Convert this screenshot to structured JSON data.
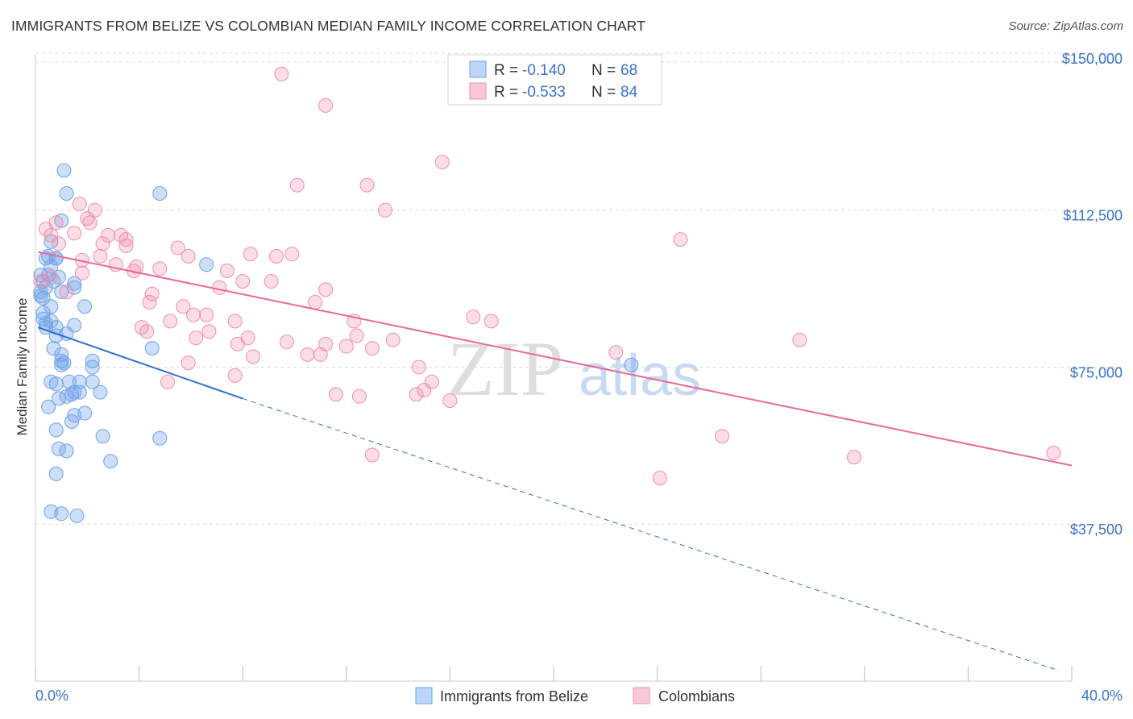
{
  "header": {
    "title": "IMMIGRANTS FROM BELIZE VS COLOMBIAN MEDIAN FAMILY INCOME CORRELATION CHART",
    "source": "Source: ZipAtlas.com"
  },
  "watermark": {
    "zip": "ZIP",
    "atlas": "atlas"
  },
  "legend": {
    "r_label": "R =",
    "n_label": "N =",
    "rows": [
      {
        "r": "-0.140",
        "n": "68",
        "color": "#6fa3e8"
      },
      {
        "r": "-0.533",
        "n": "84",
        "color": "#f08fb0"
      }
    ]
  },
  "colors": {
    "blue": "#6fa3e8",
    "blue_line": "#2f6fd0",
    "pink": "#f08fb0",
    "pink_line": "#e8699a",
    "tick_text": "#3a73c9"
  },
  "chart_data": {
    "type": "scatter",
    "title": "IMMIGRANTS FROM BELIZE VS COLOMBIAN MEDIAN FAMILY INCOME CORRELATION CHART",
    "xlabel": "",
    "ylabel": "Median Family Income",
    "xlim": [
      0,
      40
    ],
    "ylim": [
      0,
      155000
    ],
    "x_tick_labels": [
      "0.0%",
      "40.0%"
    ],
    "y_ticks": [
      37500,
      75000,
      112500,
      150000
    ],
    "y_tick_labels": [
      "$37,500",
      "$75,000",
      "$112,500",
      "$150,000"
    ],
    "grid": true,
    "legend_position": "top-center",
    "series": [
      {
        "name": "Immigrants from Belize",
        "r": -0.14,
        "n": 68,
        "color": "#6fa3e8",
        "trend": {
          "x": [
            0.1,
            8.0
          ],
          "y": [
            84500,
            67500
          ]
        },
        "trend_dashed": {
          "x": [
            8.0,
            39.5
          ],
          "y": [
            67500,
            2500
          ]
        },
        "points": [
          [
            0.3,
            95500
          ],
          [
            0.5,
            101500
          ],
          [
            0.6,
            105000
          ],
          [
            0.8,
            101000
          ],
          [
            0.5,
            97000
          ],
          [
            0.4,
            94000
          ],
          [
            0.2,
            93000
          ],
          [
            0.3,
            91500
          ],
          [
            0.9,
            96500
          ],
          [
            1.0,
            93000
          ],
          [
            0.6,
            99000
          ],
          [
            0.7,
            95500
          ],
          [
            0.4,
            85500
          ],
          [
            0.6,
            86000
          ],
          [
            0.8,
            84500
          ],
          [
            0.8,
            82500
          ],
          [
            0.7,
            79500
          ],
          [
            1.0,
            78000
          ],
          [
            1.2,
            83000
          ],
          [
            1.5,
            85000
          ],
          [
            1.0,
            76500
          ],
          [
            1.1,
            76000
          ],
          [
            1.0,
            75500
          ],
          [
            0.6,
            71500
          ],
          [
            0.8,
            71000
          ],
          [
            1.3,
            71500
          ],
          [
            1.5,
            69000
          ],
          [
            1.7,
            69000
          ],
          [
            1.4,
            68500
          ],
          [
            1.2,
            68000
          ],
          [
            0.9,
            67500
          ],
          [
            0.5,
            65500
          ],
          [
            1.9,
            64000
          ],
          [
            1.5,
            63500
          ],
          [
            1.4,
            62000
          ],
          [
            0.8,
            60000
          ],
          [
            0.9,
            55500
          ],
          [
            1.2,
            55000
          ],
          [
            2.2,
            76500
          ],
          [
            2.2,
            75000
          ],
          [
            2.2,
            71500
          ],
          [
            2.5,
            69000
          ],
          [
            1.7,
            71500
          ],
          [
            2.6,
            58500
          ],
          [
            2.9,
            52500
          ],
          [
            0.8,
            49500
          ],
          [
            0.6,
            40500
          ],
          [
            1.0,
            40000
          ],
          [
            1.6,
            39500
          ],
          [
            1.1,
            122000
          ],
          [
            1.2,
            116500
          ],
          [
            1.0,
            110000
          ],
          [
            4.8,
            116500
          ],
          [
            6.6,
            99500
          ],
          [
            4.5,
            79500
          ],
          [
            4.8,
            58000
          ],
          [
            0.4,
            84500
          ],
          [
            1.5,
            94000
          ],
          [
            1.5,
            95000
          ],
          [
            0.4,
            101000
          ],
          [
            0.8,
            101000
          ],
          [
            1.9,
            89500
          ],
          [
            0.3,
            86500
          ],
          [
            0.2,
            92000
          ],
          [
            0.3,
            88000
          ],
          [
            0.6,
            89500
          ],
          [
            23.0,
            75500
          ],
          [
            0.2,
            97000
          ]
        ]
      },
      {
        "name": "Colombians",
        "r": -0.533,
        "n": 84,
        "color": "#f08fb0",
        "trend": {
          "x": [
            0.1,
            40.0
          ],
          "y": [
            102500,
            51500
          ]
        },
        "points": [
          [
            9.5,
            145000
          ],
          [
            11.2,
            137500
          ],
          [
            15.7,
            124000
          ],
          [
            10.1,
            118500
          ],
          [
            12.8,
            118500
          ],
          [
            13.5,
            112500
          ],
          [
            1.7,
            114000
          ],
          [
            2.3,
            112500
          ],
          [
            0.8,
            109500
          ],
          [
            0.4,
            108000
          ],
          [
            0.6,
            106500
          ],
          [
            1.5,
            107000
          ],
          [
            2.0,
            110500
          ],
          [
            2.1,
            109500
          ],
          [
            2.8,
            106500
          ],
          [
            3.3,
            106500
          ],
          [
            3.5,
            105500
          ],
          [
            2.6,
            104500
          ],
          [
            3.5,
            104000
          ],
          [
            5.5,
            103500
          ],
          [
            5.9,
            101500
          ],
          [
            8.3,
            102000
          ],
          [
            9.3,
            101500
          ],
          [
            9.9,
            102000
          ],
          [
            2.5,
            101500
          ],
          [
            1.8,
            100500
          ],
          [
            3.1,
            99500
          ],
          [
            3.9,
            99000
          ],
          [
            4.8,
            98500
          ],
          [
            7.4,
            98000
          ],
          [
            8.0,
            95500
          ],
          [
            9.1,
            95500
          ],
          [
            7.1,
            94000
          ],
          [
            11.2,
            93500
          ],
          [
            4.5,
            92500
          ],
          [
            4.4,
            90500
          ],
          [
            5.7,
            89500
          ],
          [
            6.1,
            87500
          ],
          [
            6.6,
            87500
          ],
          [
            5.2,
            86000
          ],
          [
            7.7,
            86000
          ],
          [
            10.8,
            90500
          ],
          [
            12.3,
            86000
          ],
          [
            4.1,
            84500
          ],
          [
            4.3,
            83500
          ],
          [
            6.2,
            82000
          ],
          [
            6.7,
            83500
          ],
          [
            8.2,
            82000
          ],
          [
            9.7,
            81000
          ],
          [
            10.5,
            78000
          ],
          [
            11.0,
            78000
          ],
          [
            11.2,
            80500
          ],
          [
            12.0,
            80000
          ],
          [
            12.4,
            82500
          ],
          [
            13.0,
            79500
          ],
          [
            13.8,
            81500
          ],
          [
            8.4,
            77500
          ],
          [
            7.8,
            80500
          ],
          [
            7.7,
            73000
          ],
          [
            5.1,
            71500
          ],
          [
            5.9,
            76000
          ],
          [
            11.6,
            68500
          ],
          [
            12.5,
            68000
          ],
          [
            14.7,
            68500
          ],
          [
            15.0,
            69500
          ],
          [
            15.3,
            71500
          ],
          [
            16.0,
            67000
          ],
          [
            14.8,
            75000
          ],
          [
            16.9,
            87000
          ],
          [
            17.6,
            86000
          ],
          [
            22.4,
            78500
          ],
          [
            24.9,
            105500
          ],
          [
            29.5,
            81500
          ],
          [
            26.5,
            58500
          ],
          [
            31.6,
            53500
          ],
          [
            24.1,
            48500
          ],
          [
            39.3,
            54500
          ],
          [
            13.0,
            54000
          ],
          [
            1.8,
            97500
          ],
          [
            1.2,
            93000
          ],
          [
            0.6,
            96500
          ],
          [
            0.9,
            104500
          ],
          [
            3.8,
            98000
          ],
          [
            0.2,
            95500
          ]
        ]
      }
    ]
  },
  "bottom_legend": [
    "Immigrants from Belize",
    "Colombians"
  ]
}
